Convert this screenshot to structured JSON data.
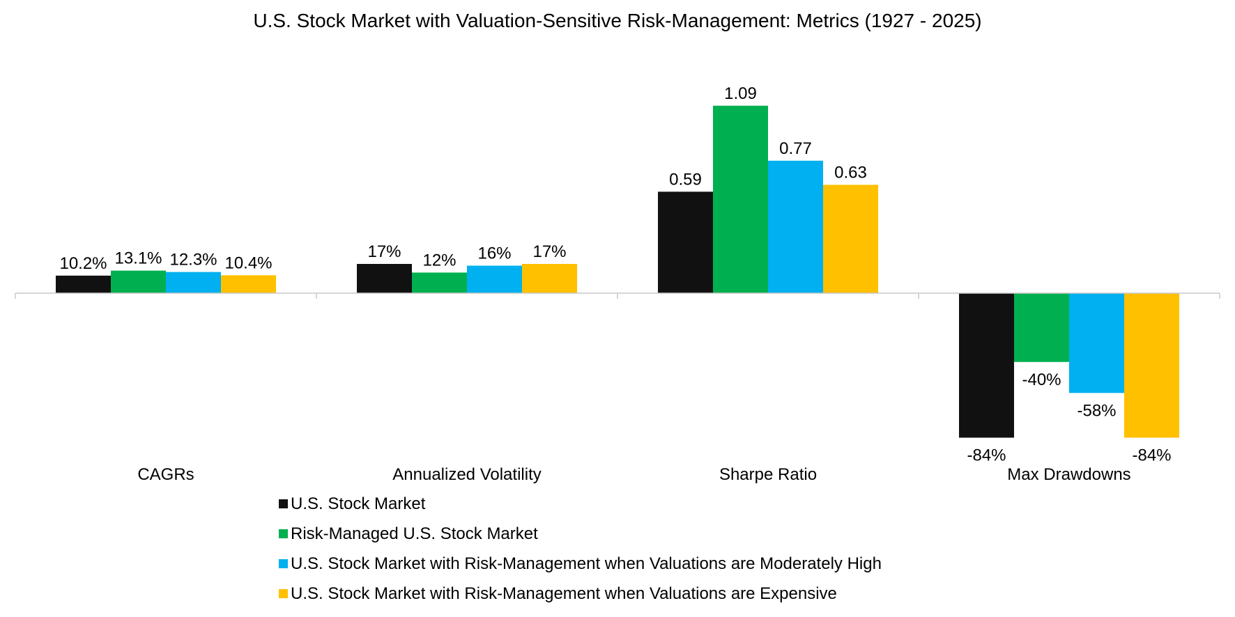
{
  "chart_data": {
    "type": "bar",
    "title": "U.S. Stock Market with Valuation-Sensitive Risk-Management: Metrics (1927 - 2025)",
    "xlabel": "",
    "ylabel": "",
    "categories": [
      "CAGRs",
      "Annualized Volatility",
      "Sharpe Ratio",
      "Max Drawdowns"
    ],
    "series": [
      {
        "name": "U.S. Stock Market",
        "color": "#111111",
        "values": [
          0.102,
          0.17,
          0.59,
          -0.84
        ],
        "labels": [
          "10.2%",
          "17%",
          "0.59",
          "-84%"
        ]
      },
      {
        "name": "Risk-Managed U.S. Stock Market",
        "color": "#00b050",
        "values": [
          0.131,
          0.12,
          1.09,
          -0.4
        ],
        "labels": [
          "13.1%",
          "12%",
          "1.09",
          "-40%"
        ]
      },
      {
        "name": "U.S. Stock Market with Risk-Management when Valuations are Moderately High",
        "color": "#00b0f0",
        "values": [
          0.123,
          0.16,
          0.77,
          -0.58
        ],
        "labels": [
          "12.3%",
          "16%",
          "0.77",
          "-58%"
        ]
      },
      {
        "name": "U.S. Stock Market with Risk-Management when Valuations are Expensive",
        "color": "#ffc000",
        "values": [
          0.104,
          0.17,
          0.63,
          -0.84
        ],
        "labels": [
          "10.4%",
          "17%",
          "0.63",
          "-84%"
        ]
      }
    ],
    "ylim": [
      -1.0,
      1.2
    ],
    "grid": false,
    "legend_position": "bottom"
  }
}
